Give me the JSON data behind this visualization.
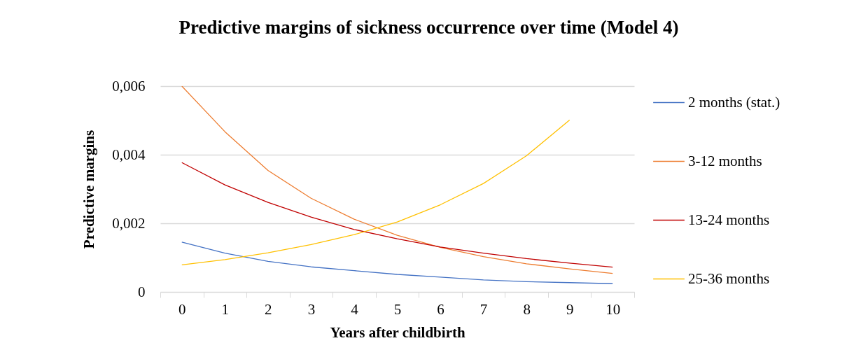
{
  "chart_data": {
    "type": "line",
    "title": "Predictive margins of sickness occurrence over time (Model 4)",
    "xlabel": "Years after childbirth",
    "ylabel": "Predictive margins",
    "categories": [
      "0",
      "1",
      "2",
      "3",
      "4",
      "5",
      "6",
      "7",
      "8",
      "9",
      "10"
    ],
    "series": [
      {
        "name": "2 months (stat.)",
        "color": "#4472c4",
        "values": [
          0.00145,
          0.00113,
          0.00089,
          0.00073,
          0.00062,
          0.00051,
          0.00043,
          0.00035,
          0.0003,
          0.00027,
          0.00024
        ]
      },
      {
        "name": "3-12 months",
        "color": "#ed7d31",
        "values": [
          0.006,
          0.00467,
          0.00354,
          0.00273,
          0.00212,
          0.00165,
          0.0013,
          0.00103,
          0.00082,
          0.00067,
          0.00054
        ]
      },
      {
        "name": "13-24 months",
        "color": "#c00000",
        "values": [
          0.00377,
          0.00312,
          0.00261,
          0.00218,
          0.00182,
          0.00155,
          0.00131,
          0.00113,
          0.00097,
          0.00084,
          0.00072
        ]
      },
      {
        "name": "25-36 months",
        "color": "#ffc000",
        "values": [
          0.00079,
          0.00094,
          0.00114,
          0.00138,
          0.00167,
          0.00204,
          0.00254,
          0.00316,
          0.00397,
          0.00501,
          null
        ]
      }
    ],
    "ylim": [
      0,
      0.006
    ],
    "yticks": [
      {
        "value": 0,
        "label": "0"
      },
      {
        "value": 0.002,
        "label": "0,002"
      },
      {
        "value": 0.004,
        "label": "0,004"
      },
      {
        "value": 0.006,
        "label": "0,006"
      }
    ],
    "grid": "y",
    "legend": "right",
    "marker": "none",
    "line_style": "solid"
  }
}
